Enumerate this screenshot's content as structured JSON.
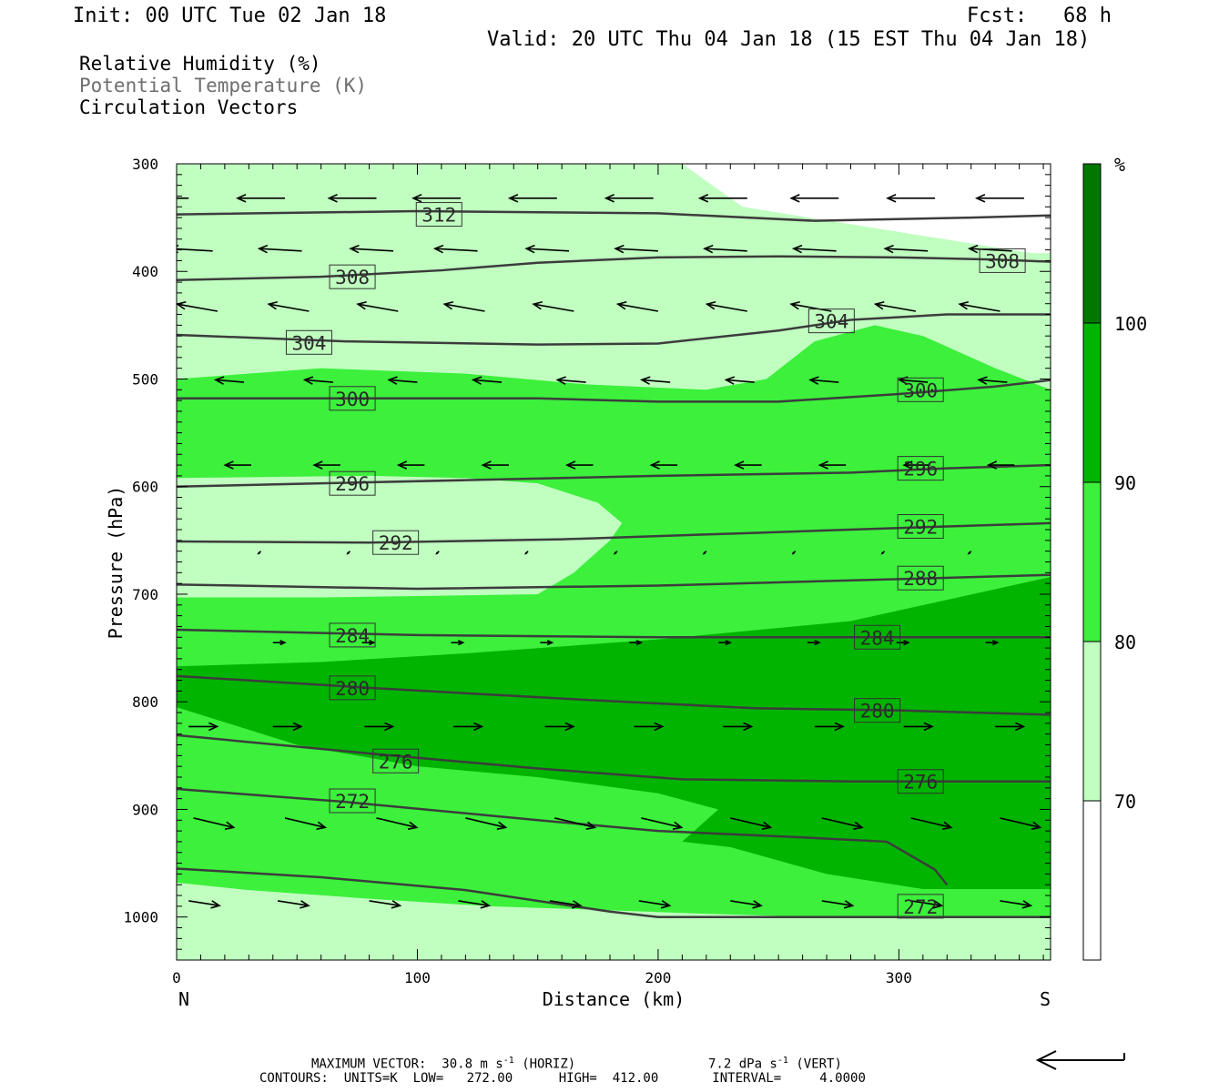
{
  "header": {
    "init": "Init: 00 UTC Tue 02 Jan 18",
    "fcst": "Fcst:   68 h",
    "valid": "Valid: 20 UTC Thu 04 Jan 18 (15 EST Thu 04 Jan 18)"
  },
  "legend_text": {
    "rh": "Relative Humidity (%)",
    "theta": "Potential Temperature (K)",
    "vectors": "Circulation Vectors"
  },
  "footer": {
    "max_vector": "MAXIMUM VECTOR:  30.8 m s",
    "horiz_unit": "-1",
    "horiz_label": " (HORIZ)",
    "vert_value": "7.2 dPa s",
    "vert_unit": "-1",
    "vert_label": " (VERT)",
    "contours": "CONTOURS:  UNITS=K  LOW=   272.00      HIGH=  412.00       INTERVAL=     4.0000"
  },
  "colors": {
    "rh_70_80": "#c0ffc0",
    "rh_80_90": "#3cf03c",
    "rh_90_100": "#00b400",
    "rh_100": "#007800",
    "contour": "#3c3c3c"
  },
  "chart_data": {
    "type": "cross-section",
    "xlabel": "Distance (km)",
    "ylabel": "Pressure (hPa)",
    "x_ticks": [
      0,
      100,
      200,
      300
    ],
    "y_ticks": [
      300,
      400,
      500,
      600,
      700,
      800,
      900,
      1000
    ],
    "xlim": [
      0,
      363
    ],
    "ylim": [
      1040,
      300
    ],
    "x_end_labels": {
      "left": "N",
      "right": "S"
    },
    "colorbar": {
      "unit": "%",
      "levels": [
        70,
        80,
        90,
        100
      ],
      "colors": [
        "#ffffff",
        "#c0ffc0",
        "#3cf03c",
        "#00b400",
        "#007800"
      ]
    },
    "rh_regions": [
      {
        "level": 70,
        "polygon": [
          [
            0,
            300
          ],
          [
            210,
            300
          ],
          [
            235,
            340
          ],
          [
            355,
            383
          ],
          [
            363,
            383
          ],
          [
            363,
            1040
          ],
          [
            0,
            1040
          ]
        ]
      },
      {
        "level": 80,
        "polygon": [
          [
            0,
            500
          ],
          [
            60,
            490
          ],
          [
            120,
            495
          ],
          [
            170,
            505
          ],
          [
            220,
            510
          ],
          [
            245,
            500
          ],
          [
            265,
            465
          ],
          [
            290,
            450
          ],
          [
            310,
            460
          ],
          [
            340,
            490
          ],
          [
            363,
            510
          ],
          [
            363,
            1000
          ],
          [
            340,
            1000
          ],
          [
            300,
            999
          ],
          [
            250,
            999
          ],
          [
            220,
            997
          ],
          [
            170,
            993
          ],
          [
            130,
            990
          ],
          [
            80,
            983
          ],
          [
            30,
            975
          ],
          [
            0,
            968
          ],
          [
            0,
            703
          ],
          [
            60,
            703
          ],
          [
            150,
            700
          ],
          [
            165,
            680
          ],
          [
            180,
            650
          ],
          [
            185,
            634
          ],
          [
            175,
            615
          ],
          [
            150,
            597
          ],
          [
            120,
            592
          ],
          [
            80,
            590
          ],
          [
            0,
            592
          ]
        ]
      },
      {
        "level": 90,
        "polygon": [
          [
            0,
            767
          ],
          [
            60,
            763
          ],
          [
            120,
            755
          ],
          [
            200,
            742
          ],
          [
            280,
            725
          ],
          [
            363,
            684
          ],
          [
            363,
            974
          ],
          [
            310,
            974
          ],
          [
            270,
            960
          ],
          [
            230,
            935
          ],
          [
            210,
            930
          ],
          [
            225,
            900
          ],
          [
            200,
            885
          ],
          [
            150,
            870
          ],
          [
            100,
            860
          ],
          [
            50,
            840
          ],
          [
            0,
            805
          ]
        ]
      }
    ],
    "theta_contours": [
      {
        "label": "312",
        "points": [
          [
            0,
            347
          ],
          [
            100,
            344
          ],
          [
            200,
            346
          ],
          [
            265,
            353
          ],
          [
            330,
            350
          ],
          [
            363,
            348
          ]
        ]
      },
      {
        "label": "308",
        "points": [
          [
            0,
            408
          ],
          [
            60,
            405
          ],
          [
            110,
            399
          ],
          [
            150,
            392
          ],
          [
            200,
            387
          ],
          [
            250,
            386
          ],
          [
            300,
            387
          ],
          [
            340,
            389
          ],
          [
            363,
            391
          ]
        ]
      },
      {
        "label": "304",
        "points": [
          [
            0,
            459
          ],
          [
            70,
            465
          ],
          [
            150,
            468
          ],
          [
            200,
            467
          ],
          [
            250,
            455
          ],
          [
            280,
            445
          ],
          [
            320,
            440
          ],
          [
            363,
            440
          ]
        ]
      },
      {
        "label": "300",
        "points": [
          [
            0,
            518
          ],
          [
            80,
            518
          ],
          [
            150,
            518
          ],
          [
            200,
            521
          ],
          [
            250,
            521
          ],
          [
            300,
            514
          ],
          [
            340,
            507
          ],
          [
            363,
            501
          ]
        ]
      },
      {
        "label": "296",
        "points": [
          [
            0,
            600
          ],
          [
            60,
            597
          ],
          [
            120,
            594
          ],
          [
            200,
            590
          ],
          [
            280,
            587
          ],
          [
            320,
            583
          ],
          [
            363,
            580
          ]
        ]
      },
      {
        "label": "292",
        "points": [
          [
            0,
            651
          ],
          [
            80,
            652
          ],
          [
            160,
            649
          ],
          [
            240,
            643
          ],
          [
            320,
            637
          ],
          [
            363,
            634
          ]
        ]
      },
      {
        "label": "288",
        "points": [
          [
            0,
            691
          ],
          [
            100,
            695
          ],
          [
            200,
            692
          ],
          [
            300,
            686
          ],
          [
            363,
            682
          ]
        ]
      },
      {
        "label": "284",
        "points": [
          [
            0,
            733
          ],
          [
            100,
            738
          ],
          [
            200,
            740
          ],
          [
            300,
            740
          ],
          [
            363,
            740
          ]
        ]
      },
      {
        "label": "280",
        "points": [
          [
            0,
            776
          ],
          [
            80,
            787
          ],
          [
            160,
            797
          ],
          [
            240,
            806
          ],
          [
            300,
            808
          ],
          [
            363,
            812
          ]
        ]
      },
      {
        "label": "276",
        "points": [
          [
            0,
            831
          ],
          [
            80,
            848
          ],
          [
            150,
            862
          ],
          [
            210,
            872
          ],
          [
            280,
            874
          ],
          [
            363,
            874
          ]
        ]
      },
      {
        "label": "272",
        "points": [
          [
            0,
            881
          ],
          [
            70,
            893
          ],
          [
            150,
            910
          ],
          [
            200,
            920
          ],
          [
            260,
            926
          ],
          [
            295,
            930
          ],
          [
            315,
            956
          ],
          [
            320,
            970
          ]
        ]
      },
      {
        "label": "272",
        "points": [
          [
            0,
            955
          ],
          [
            60,
            963
          ],
          [
            120,
            975
          ],
          [
            180,
            995
          ],
          [
            200,
            1000
          ],
          [
            260,
            1000
          ],
          [
            300,
            1000
          ],
          [
            363,
            1000
          ]
        ]
      }
    ],
    "theta_labels": [
      {
        "text": "312",
        "x": 109,
        "y": 347
      },
      {
        "text": "308",
        "x": 73,
        "y": 405
      },
      {
        "text": "308",
        "x": 343,
        "y": 390
      },
      {
        "text": "304",
        "x": 55,
        "y": 466
      },
      {
        "text": "304",
        "x": 272,
        "y": 446
      },
      {
        "text": "300",
        "x": 73,
        "y": 518
      },
      {
        "text": "300",
        "x": 309,
        "y": 510
      },
      {
        "text": "296",
        "x": 73,
        "y": 597
      },
      {
        "text": "296",
        "x": 309,
        "y": 583
      },
      {
        "text": "292",
        "x": 91,
        "y": 652
      },
      {
        "text": "292",
        "x": 309,
        "y": 637
      },
      {
        "text": "288",
        "x": 309,
        "y": 685
      },
      {
        "text": "284",
        "x": 73,
        "y": 738
      },
      {
        "text": "284",
        "x": 291,
        "y": 740
      },
      {
        "text": "280",
        "x": 73,
        "y": 787
      },
      {
        "text": "280",
        "x": 291,
        "y": 808
      },
      {
        "text": "276",
        "x": 91,
        "y": 855
      },
      {
        "text": "276",
        "x": 309,
        "y": 874
      },
      {
        "text": "272",
        "x": 73,
        "y": 892
      },
      {
        "text": "272",
        "x": 309,
        "y": 990
      }
    ],
    "vector_rows": [
      {
        "p": 332,
        "dx": -20,
        "dy": 0,
        "xs": [
          5,
          45,
          83,
          118,
          158,
          198,
          237,
          275,
          315,
          352
        ]
      },
      {
        "p": 381,
        "dx": -18,
        "dy": -1,
        "xs": [
          15,
          52,
          90,
          125,
          163,
          200,
          237,
          274,
          312,
          347
        ]
      },
      {
        "p": 437,
        "dx": -17,
        "dy": -3,
        "xs": [
          17,
          55,
          92,
          128,
          165,
          200,
          237,
          272,
          307,
          342
        ]
      },
      {
        "p": 503,
        "dx": -12,
        "dy": -1,
        "xs": [
          28,
          65,
          100,
          135,
          170,
          205,
          240,
          275,
          312,
          345
        ]
      },
      {
        "p": 580,
        "dx": -11,
        "dy": 0,
        "xs": [
          31,
          68,
          103,
          138,
          173,
          208,
          243,
          278,
          313,
          348
        ]
      },
      {
        "p": 660,
        "dx": -1,
        "dy": 1,
        "xs": [
          35,
          72,
          109,
          146,
          183,
          220,
          257,
          294,
          330
        ]
      },
      {
        "p": 745,
        "dx": 5,
        "dy": 0,
        "xs": [
          40,
          77,
          114,
          151,
          188,
          225,
          262,
          299,
          336
        ]
      },
      {
        "p": 823,
        "dx": 12,
        "dy": 0,
        "xs": [
          5,
          40,
          78,
          115,
          153,
          190,
          227,
          265,
          302,
          340
        ]
      },
      {
        "p": 908,
        "dx": 17,
        "dy": 4,
        "xs": [
          7,
          45,
          83,
          120,
          157,
          193,
          230,
          268,
          305,
          342
        ]
      },
      {
        "p": 985,
        "dx": 13,
        "dy": 2,
        "xs": [
          5,
          42,
          80,
          117,
          155,
          192,
          230,
          268,
          305,
          342
        ]
      }
    ],
    "reference_vector_arrow": "left"
  }
}
